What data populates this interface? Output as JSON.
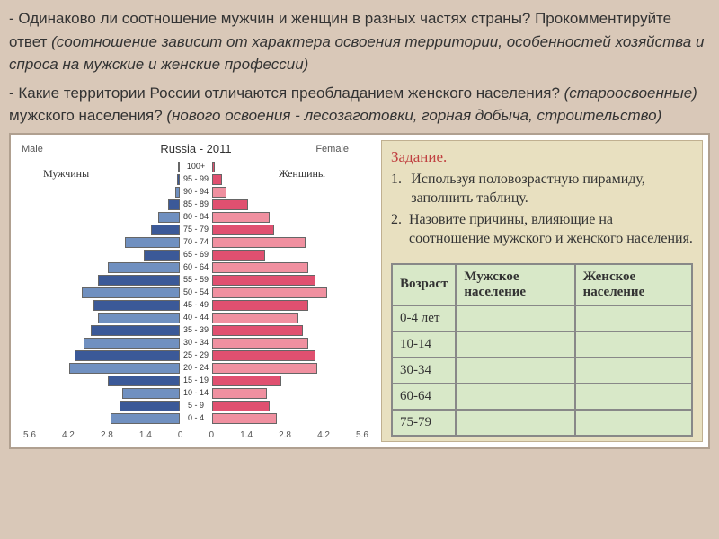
{
  "questions": {
    "q1_part1": "- Одинаково ли соотношение мужчин и женщин в разных частях страны? Прокомментируйте ответ ",
    "q1_italic": "(соотношение зависит от характера освоения территории, особенностей хозяйства и спроса на мужские и женские профессии)",
    "q2_part1": "- Какие территории России отличаются преобладанием женского населения? ",
    "q2_italic1": "(староосвоенные)",
    "q2_part2": " мужского населения? ",
    "q2_italic2": "(нового освоения - лесозаготовки, горная добыча, строительство)"
  },
  "chart": {
    "title": "Russia - 2011",
    "male_en": "Male",
    "female_en": "Female",
    "male_ru": "Мужчины",
    "female_ru": "Женщины",
    "xticks": [
      "5.6",
      "4.2",
      "2.8",
      "1.4",
      "0",
      "0",
      "1.4",
      "2.8",
      "4.2",
      "5.6"
    ],
    "rows": [
      {
        "age": "100+",
        "m": 0.05,
        "f": 0.1,
        "mc": "#3b5998",
        "fc": "#e05070"
      },
      {
        "age": "95 - 99",
        "m": 0.1,
        "f": 0.4,
        "mc": "#3b5998",
        "fc": "#e05070"
      },
      {
        "age": "90 - 94",
        "m": 0.2,
        "f": 0.6,
        "mc": "#7090c0",
        "fc": "#f090a0"
      },
      {
        "age": "85 - 89",
        "m": 0.5,
        "f": 1.5,
        "mc": "#3b5998",
        "fc": "#e05070"
      },
      {
        "age": "80 - 84",
        "m": 0.9,
        "f": 2.4,
        "mc": "#7090c0",
        "fc": "#f090a0"
      },
      {
        "age": "75 - 79",
        "m": 1.2,
        "f": 2.6,
        "mc": "#3b5998",
        "fc": "#e05070"
      },
      {
        "age": "70 - 74",
        "m": 2.3,
        "f": 3.9,
        "mc": "#7090c0",
        "fc": "#f090a0"
      },
      {
        "age": "65 - 69",
        "m": 1.5,
        "f": 2.2,
        "mc": "#3b5998",
        "fc": "#e05070"
      },
      {
        "age": "60 - 64",
        "m": 3.0,
        "f": 4.0,
        "mc": "#7090c0",
        "fc": "#f090a0"
      },
      {
        "age": "55 - 59",
        "m": 3.4,
        "f": 4.3,
        "mc": "#3b5998",
        "fc": "#e05070"
      },
      {
        "age": "50 - 54",
        "m": 4.1,
        "f": 4.8,
        "mc": "#7090c0",
        "fc": "#f090a0"
      },
      {
        "age": "45 - 49",
        "m": 3.6,
        "f": 4.0,
        "mc": "#3b5998",
        "fc": "#e05070"
      },
      {
        "age": "40 - 44",
        "m": 3.4,
        "f": 3.6,
        "mc": "#7090c0",
        "fc": "#f090a0"
      },
      {
        "age": "35 - 39",
        "m": 3.7,
        "f": 3.8,
        "mc": "#3b5998",
        "fc": "#e05070"
      },
      {
        "age": "30 - 34",
        "m": 4.0,
        "f": 4.0,
        "mc": "#7090c0",
        "fc": "#f090a0"
      },
      {
        "age": "25 - 29",
        "m": 4.4,
        "f": 4.3,
        "mc": "#3b5998",
        "fc": "#e05070"
      },
      {
        "age": "20 - 24",
        "m": 4.6,
        "f": 4.4,
        "mc": "#7090c0",
        "fc": "#f090a0"
      },
      {
        "age": "15 - 19",
        "m": 3.0,
        "f": 2.9,
        "mc": "#3b5998",
        "fc": "#e05070"
      },
      {
        "age": "10 - 14",
        "m": 2.4,
        "f": 2.3,
        "mc": "#7090c0",
        "fc": "#f090a0"
      },
      {
        "age": "5 - 9",
        "m": 2.5,
        "f": 2.4,
        "mc": "#3b5998",
        "fc": "#e05070"
      },
      {
        "age": "0 - 4",
        "m": 2.9,
        "f": 2.7,
        "mc": "#7090c0",
        "fc": "#f090a0"
      }
    ],
    "max_val": 6.0
  },
  "task": {
    "title": "Задание.",
    "items": [
      {
        "n": "1.",
        "text": "Используя половозрастную пирамиду, заполнить таблицу."
      },
      {
        "n": "2.",
        "text": "Назовите причины, влияющие на соотношение мужского и женского населения."
      }
    ],
    "table": {
      "headers": [
        "Возраст",
        "Мужское население",
        "Женское население"
      ],
      "rows": [
        "0-4 лет",
        "10-14",
        "30-34",
        "60-64",
        "75-79"
      ]
    }
  }
}
